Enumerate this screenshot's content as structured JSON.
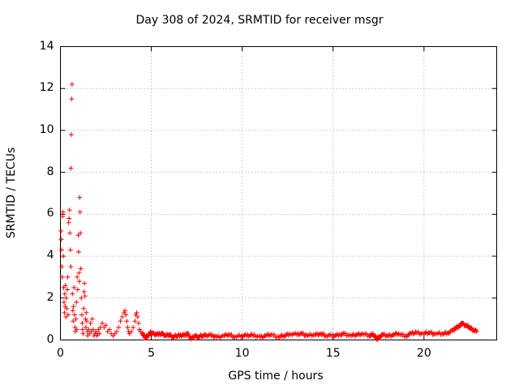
{
  "chart_data": {
    "type": "scatter",
    "title": "Day 308 of 2024, SRMTID for receiver msgr",
    "xlabel": "GPS time / hours",
    "ylabel": "SRMTID / TECUs",
    "xlim": [
      0,
      24
    ],
    "ylim": [
      0,
      14
    ],
    "xticks": [
      0,
      5,
      10,
      15,
      20
    ],
    "yticks": [
      0,
      2,
      4,
      6,
      8,
      10,
      12,
      14
    ],
    "grid": true,
    "marker": "+",
    "color": "#ff0000",
    "series": [
      {
        "name": "SRMTID",
        "points": [
          [
            0.03,
            5.2
          ],
          [
            0.05,
            4.8
          ],
          [
            0.07,
            4.3
          ],
          [
            0.08,
            3.5
          ],
          [
            0.1,
            3.0
          ],
          [
            0.12,
            5.9
          ],
          [
            0.14,
            6.1
          ],
          [
            0.16,
            4.0
          ],
          [
            0.18,
            2.5
          ],
          [
            0.2,
            1.8
          ],
          [
            0.22,
            1.3
          ],
          [
            0.24,
            2.2
          ],
          [
            0.26,
            1.6
          ],
          [
            0.28,
            2.6
          ],
          [
            0.3,
            1.1
          ],
          [
            0.32,
            2.0
          ],
          [
            0.35,
            1.5
          ],
          [
            0.38,
            2.4
          ],
          [
            0.4,
            3.0
          ],
          [
            0.42,
            1.2
          ],
          [
            0.45,
            5.6
          ],
          [
            0.48,
            5.8
          ],
          [
            0.5,
            6.2
          ],
          [
            0.52,
            5.1
          ],
          [
            0.55,
            4.3
          ],
          [
            0.57,
            3.5
          ],
          [
            0.58,
            8.2
          ],
          [
            0.6,
            9.8
          ],
          [
            0.62,
            11.5
          ],
          [
            0.64,
            12.2
          ],
          [
            0.66,
            2.2
          ],
          [
            0.68,
            1.4
          ],
          [
            0.7,
            0.9
          ],
          [
            0.72,
            1.6
          ],
          [
            0.75,
            2.5
          ],
          [
            0.78,
            1.2
          ],
          [
            0.8,
            0.6
          ],
          [
            0.82,
            0.4
          ],
          [
            0.85,
            1.0
          ],
          [
            0.88,
            1.8
          ],
          [
            0.9,
            0.5
          ],
          [
            0.92,
            3.0
          ],
          [
            0.95,
            2.4
          ],
          [
            0.98,
            5.0
          ],
          [
            1.0,
            4.2
          ],
          [
            1.02,
            3.2
          ],
          [
            1.04,
            2.8
          ],
          [
            1.06,
            6.8
          ],
          [
            1.08,
            6.1
          ],
          [
            1.1,
            5.1
          ],
          [
            1.12,
            3.4
          ],
          [
            1.15,
            2.0
          ],
          [
            1.18,
            1.2
          ],
          [
            1.2,
            0.8
          ],
          [
            1.22,
            0.5
          ],
          [
            1.25,
            0.3
          ],
          [
            1.28,
            1.5
          ],
          [
            1.3,
            2.3
          ],
          [
            1.32,
            2.7
          ],
          [
            1.35,
            2.1
          ],
          [
            1.38,
            1.0
          ],
          [
            1.4,
            0.6
          ],
          [
            1.42,
            1.3
          ],
          [
            1.45,
            0.9
          ],
          [
            1.48,
            0.4
          ],
          [
            1.5,
            0.2
          ],
          [
            1.55,
            0.5
          ],
          [
            1.6,
            0.3
          ],
          [
            1.65,
            0.8
          ],
          [
            1.7,
            0.4
          ],
          [
            1.75,
            1.0
          ],
          [
            1.8,
            0.5
          ],
          [
            1.85,
            0.2
          ],
          [
            1.9,
            0.3
          ],
          [
            1.95,
            0.4
          ],
          [
            2.0,
            0.2
          ],
          [
            2.05,
            0.3
          ],
          [
            2.1,
            0.5
          ],
          [
            2.15,
            0.3
          ],
          [
            2.2,
            0.6
          ],
          [
            2.3,
            0.8
          ],
          [
            2.4,
            0.6
          ],
          [
            2.5,
            0.7
          ],
          [
            2.6,
            0.4
          ],
          [
            2.7,
            0.5
          ],
          [
            2.8,
            0.3
          ],
          [
            2.9,
            0.2
          ],
          [
            3.0,
            0.3
          ],
          [
            3.1,
            0.4
          ],
          [
            3.2,
            0.6
          ],
          [
            3.3,
            0.9
          ],
          [
            3.4,
            1.1
          ],
          [
            3.5,
            1.3
          ],
          [
            3.55,
            1.4
          ],
          [
            3.6,
            1.2
          ],
          [
            3.65,
            0.9
          ],
          [
            3.7,
            0.6
          ],
          [
            3.75,
            0.4
          ],
          [
            3.8,
            0.3
          ],
          [
            3.9,
            0.4
          ],
          [
            4.0,
            0.6
          ],
          [
            4.1,
            0.9
          ],
          [
            4.15,
            1.2
          ],
          [
            4.2,
            1.3
          ],
          [
            4.25,
            1.1
          ],
          [
            4.3,
            0.8
          ],
          [
            4.35,
            0.5
          ],
          [
            4.4,
            0.4
          ],
          [
            4.5,
            0.3
          ],
          [
            4.6,
            0.2
          ],
          [
            4.7,
            0.1
          ],
          [
            4.8,
            0.2
          ],
          [
            4.9,
            0.3
          ],
          [
            5.0,
            0.35
          ],
          [
            5.2,
            0.3
          ],
          [
            5.4,
            0.25
          ],
          [
            5.6,
            0.3
          ],
          [
            5.8,
            0.2
          ],
          [
            6.0,
            0.25
          ],
          [
            6.2,
            0.15
          ],
          [
            6.4,
            0.2
          ],
          [
            6.6,
            0.25
          ],
          [
            6.8,
            0.2
          ],
          [
            7.0,
            0.3
          ],
          [
            7.2,
            0.05
          ],
          [
            7.4,
            0.2
          ],
          [
            7.6,
            0.15
          ],
          [
            7.8,
            0.2
          ],
          [
            8.0,
            0.25
          ],
          [
            8.3,
            0.2
          ],
          [
            8.6,
            0.15
          ],
          [
            9.0,
            0.2
          ],
          [
            9.3,
            0.25
          ],
          [
            9.6,
            0.15
          ],
          [
            10.0,
            0.2
          ],
          [
            10.3,
            0.25
          ],
          [
            10.6,
            0.2
          ],
          [
            11.0,
            0.15
          ],
          [
            11.3,
            0.2
          ],
          [
            11.6,
            0.25
          ],
          [
            12.0,
            0.15
          ],
          [
            12.3,
            0.2
          ],
          [
            12.6,
            0.3
          ],
          [
            13.0,
            0.25
          ],
          [
            13.3,
            0.3
          ],
          [
            13.6,
            0.2
          ],
          [
            14.0,
            0.25
          ],
          [
            14.3,
            0.3
          ],
          [
            14.6,
            0.2
          ],
          [
            15.0,
            0.25
          ],
          [
            15.3,
            0.2
          ],
          [
            15.6,
            0.3
          ],
          [
            16.0,
            0.2
          ],
          [
            16.3,
            0.25
          ],
          [
            16.6,
            0.3
          ],
          [
            17.0,
            0.2
          ],
          [
            17.2,
            0.3
          ],
          [
            17.4,
            0.05
          ],
          [
            17.5,
            0.1
          ],
          [
            17.7,
            0.25
          ],
          [
            18.0,
            0.2
          ],
          [
            18.3,
            0.25
          ],
          [
            18.6,
            0.3
          ],
          [
            19.0,
            0.2
          ],
          [
            19.3,
            0.3
          ],
          [
            19.6,
            0.35
          ],
          [
            20.0,
            0.3
          ],
          [
            20.3,
            0.35
          ],
          [
            20.6,
            0.3
          ],
          [
            21.0,
            0.3
          ],
          [
            21.3,
            0.35
          ],
          [
            21.6,
            0.45
          ],
          [
            21.8,
            0.6
          ],
          [
            22.0,
            0.7
          ],
          [
            22.1,
            0.8
          ],
          [
            22.3,
            0.7
          ],
          [
            22.5,
            0.6
          ],
          [
            22.7,
            0.5
          ],
          [
            22.9,
            0.4
          ]
        ]
      }
    ]
  }
}
